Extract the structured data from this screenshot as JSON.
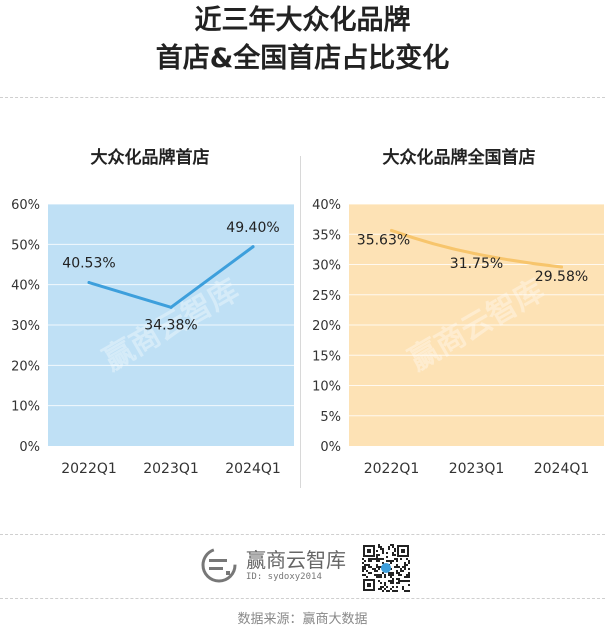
{
  "title": {
    "line1": "近三年大众化品牌",
    "line2": "首店&全国首店占比变化"
  },
  "watermark": "赢商云智库",
  "brand": {
    "name": "赢商云智库",
    "id_text": "ID: sydoxy2014",
    "logo_icon": "winshang-logo-icon",
    "qr_icon": "qr-code-icon"
  },
  "source": "数据来源：赢商大数据",
  "chart_data": [
    {
      "type": "line",
      "title": "大众化品牌首店",
      "categories": [
        "2022Q1",
        "2023Q1",
        "2024Q1"
      ],
      "series": [
        {
          "values": [
            40.53,
            34.38,
            49.4
          ],
          "labels": [
            "40.53%",
            "34.38%",
            "49.40%"
          ],
          "color": "#3d9fdc"
        }
      ],
      "yticks": [
        "0%",
        "10%",
        "20%",
        "30%",
        "40%",
        "50%",
        "60%"
      ],
      "ylim": [
        0,
        60
      ],
      "background": "#bfe0f5",
      "grid": true
    },
    {
      "type": "line",
      "title": "大众化品牌全国首店",
      "categories": [
        "2022Q1",
        "2023Q1",
        "2024Q1"
      ],
      "series": [
        {
          "values": [
            35.63,
            31.75,
            29.58
          ],
          "labels": [
            "35.63%",
            "31.75%",
            "29.58%"
          ],
          "color": "#f7c56c"
        }
      ],
      "yticks": [
        "0%",
        "5%",
        "10%",
        "15%",
        "20%",
        "25%",
        "30%",
        "35%",
        "40%"
      ],
      "ylim": [
        0,
        40
      ],
      "background": "#fde2b5",
      "grid": true
    }
  ]
}
